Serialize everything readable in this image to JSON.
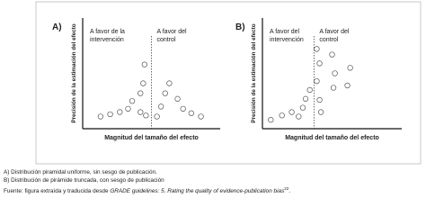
{
  "chart_data": [
    {
      "type": "scatter",
      "label": "A)",
      "annotations": [
        [
          "A favor de la",
          "intervención"
        ],
        [
          "A favor del",
          "control"
        ]
      ],
      "x_label": "Magnitud del tamaño del efecto",
      "y_label": "Precisión de la estimación del efecto",
      "xlim": [
        0,
        100
      ],
      "ylim": [
        0,
        100
      ],
      "divider_x": 50,
      "color": "#555555",
      "x": [
        13,
        20,
        27,
        33,
        36,
        42,
        44,
        45,
        42,
        46,
        54,
        57,
        60,
        63,
        69,
        73,
        79,
        86
      ],
      "y": [
        11,
        13,
        15,
        18,
        25,
        32,
        41,
        58,
        15,
        12,
        11,
        20,
        32,
        41,
        27,
        18,
        14,
        11
      ]
    },
    {
      "type": "scatter",
      "label": "B)",
      "annotations": [
        [
          "A favor del",
          "intervención"
        ],
        [
          "A favor del",
          "control"
        ]
      ],
      "x_label": "Magnitud del tamaño del efecto",
      "y_label": "Precisión de la estimación del efecto",
      "xlim": [
        0,
        100
      ],
      "ylim": [
        0,
        100
      ],
      "divider_x": 37,
      "color": "#555555",
      "x": [
        6,
        14,
        21,
        29,
        31,
        34,
        26,
        39,
        39,
        41,
        41,
        42,
        50,
        51,
        52,
        61,
        63
      ],
      "y": [
        8,
        12,
        15,
        19,
        27,
        35,
        11,
        43,
        72,
        59,
        26,
        15,
        67,
        37,
        50,
        39,
        55
      ]
    }
  ],
  "caption": [
    "A) Distribución piramidal uniforme, sin sesgo de publicación.",
    "B) Distribución de pirámide truncada, con sesgo de publicación",
    [
      "Fuente: figura extraída y traducida desde ",
      "GRADE guidelines: 5. Rating the quality of evidence-publication bias",
      "22",
      "."
    ]
  ]
}
